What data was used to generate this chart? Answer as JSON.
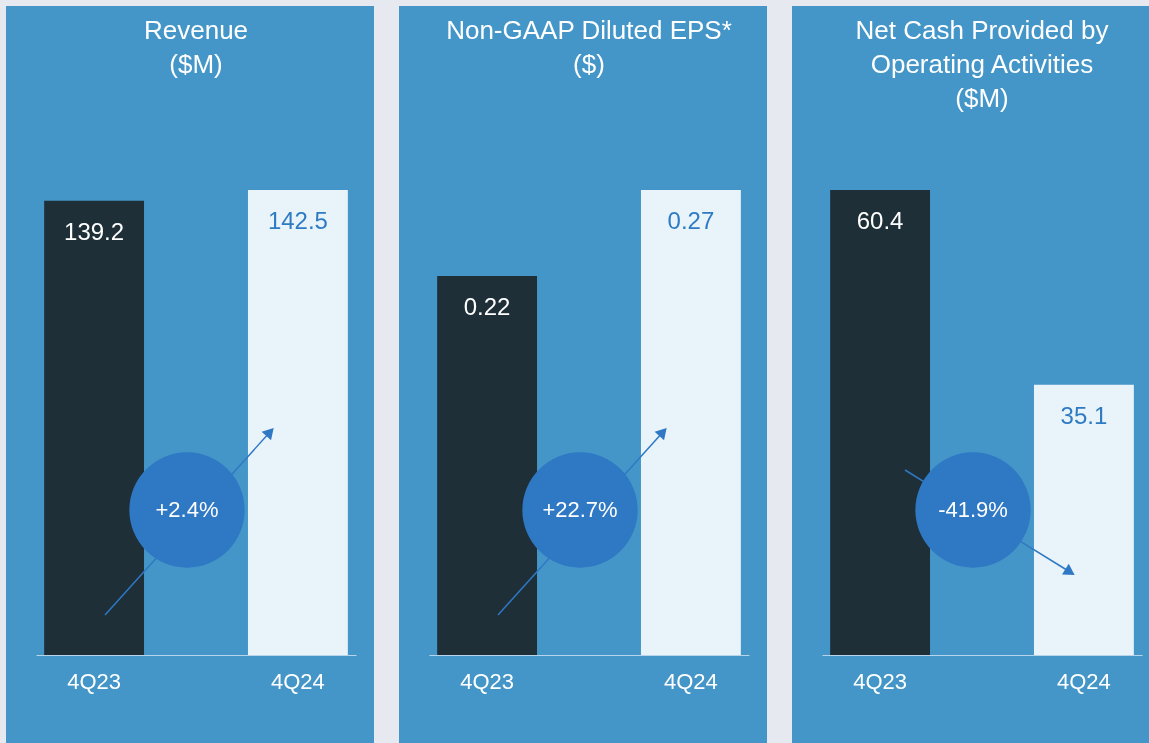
{
  "chart_data": [
    {
      "type": "bar",
      "title": "Revenue\n($M)",
      "categories": [
        "4Q23",
        "4Q24"
      ],
      "values": [
        139.2,
        142.5
      ],
      "colors": [
        "#1e2f38",
        "#e8f3fa"
      ],
      "data_labels": true,
      "annotations": [
        "+2.4%"
      ]
    },
    {
      "type": "bar",
      "title": "Non-GAAP Diluted EPS*\n($)",
      "categories": [
        "4Q23",
        "4Q24"
      ],
      "values": [
        0.22,
        0.27
      ],
      "colors": [
        "#1e2f38",
        "#e8f3fa"
      ],
      "data_labels": true,
      "annotations": [
        "+22.7%"
      ]
    },
    {
      "type": "bar",
      "title": "Net Cash Provided by\nOperating Activities\n($M)",
      "categories": [
        "4Q23",
        "4Q24"
      ],
      "values": [
        60.4,
        35.1
      ],
      "colors": [
        "#1e2f38",
        "#e8f3fa"
      ],
      "data_labels": true,
      "annotations": [
        "-41.9%"
      ]
    }
  ]
}
